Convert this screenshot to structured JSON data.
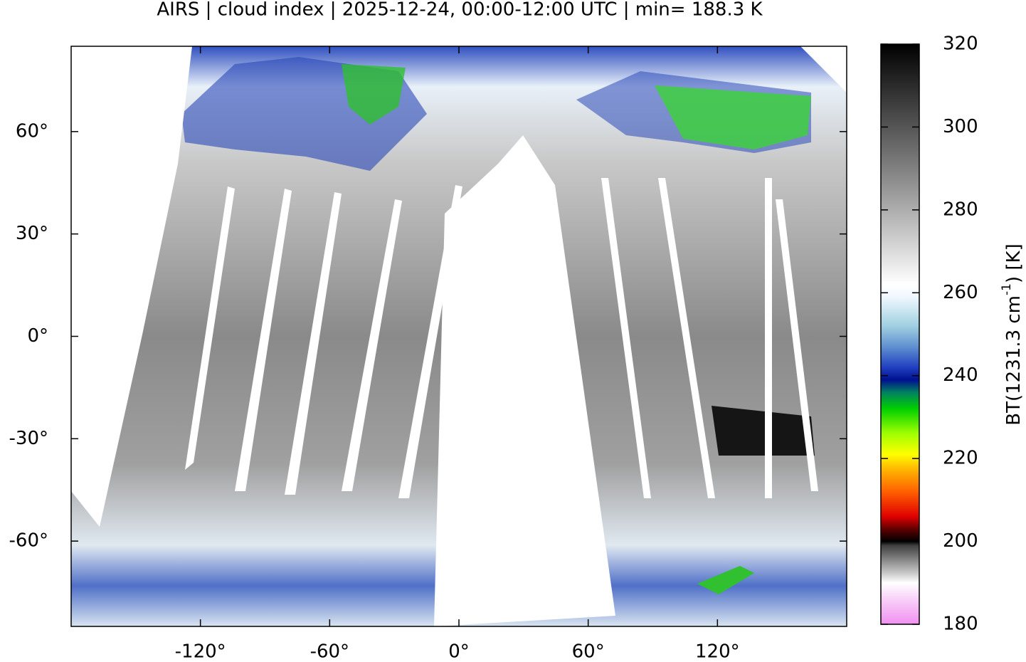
{
  "chart_data": {
    "type": "map",
    "title": "AIRS | cloud index | 2025-12-24, 00:00-12:00 UTC | min= 188.3 K",
    "xlim": [
      -180,
      180
    ],
    "ylim": [
      -85,
      85
    ],
    "xticks": [
      {
        "value": -120,
        "label": "-120°"
      },
      {
        "value": -60,
        "label": "-60°"
      },
      {
        "value": 0,
        "label": "0°"
      },
      {
        "value": 60,
        "label": "60°"
      },
      {
        "value": 120,
        "label": "120°"
      }
    ],
    "yticks": [
      {
        "value": 60,
        "label": "60°"
      },
      {
        "value": 30,
        "label": "30°"
      },
      {
        "value": 0,
        "label": "0°"
      },
      {
        "value": -30,
        "label": "-30°"
      },
      {
        "value": -60,
        "label": "-60°"
      }
    ],
    "colorbar": {
      "lim": [
        180,
        320
      ],
      "ticks": [
        180,
        200,
        220,
        240,
        260,
        280,
        300,
        320
      ],
      "label": [
        "BT(1231.3 cm",
        "-1",
        ") [K]"
      ],
      "colormap": [
        [
          180,
          "#f090f0"
        ],
        [
          186,
          "#f8d0f8"
        ],
        [
          190,
          "#ffffff"
        ],
        [
          192,
          "#d0d0d0"
        ],
        [
          199,
          "#404040"
        ],
        [
          200,
          "#000000"
        ],
        [
          203,
          "#600000"
        ],
        [
          206,
          "#e00000"
        ],
        [
          212,
          "#ff6000"
        ],
        [
          218,
          "#ffc000"
        ],
        [
          221,
          "#ffff00"
        ],
        [
          226,
          "#a0ff00"
        ],
        [
          232,
          "#00d000"
        ],
        [
          236,
          "#008060"
        ],
        [
          239,
          "#001090"
        ],
        [
          242,
          "#2040c0"
        ],
        [
          247,
          "#6090d0"
        ],
        [
          252,
          "#a0d0e0"
        ],
        [
          259,
          "#f0f8ff"
        ],
        [
          262,
          "#ffffff"
        ],
        [
          290,
          "#808080"
        ],
        [
          320,
          "#000000"
        ]
      ]
    }
  }
}
